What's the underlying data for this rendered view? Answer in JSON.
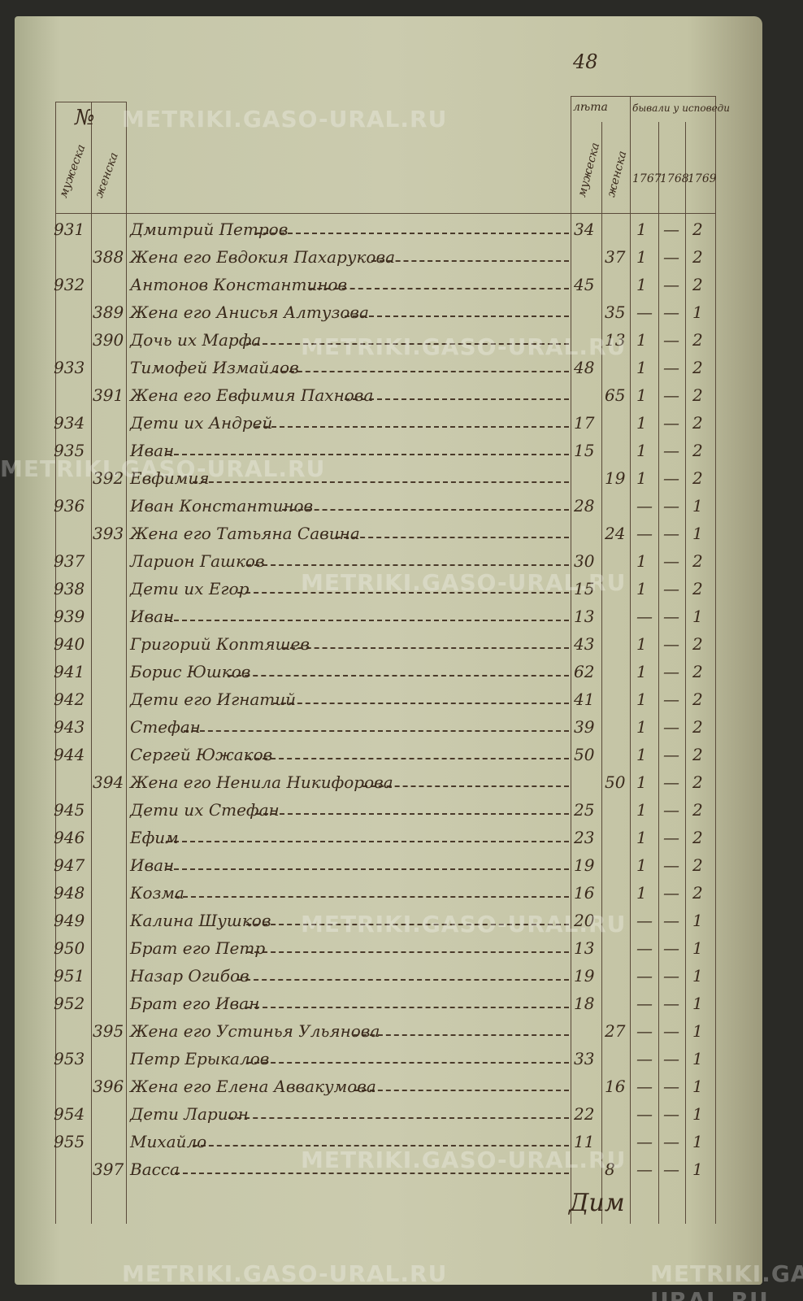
{
  "page_number": "48",
  "watermark": "METRIKI.GASO-URAL.RU",
  "header": {
    "number": "№",
    "male": "мужеска",
    "female": "женска",
    "age": "лѣта",
    "age_male": "мужеска",
    "age_female": "женска",
    "confession": "бывали у исповеди",
    "years": [
      "1767",
      "1768",
      "1769"
    ]
  },
  "rows": [
    [
      "931",
      null,
      "Дмитрий Петров",
      "34",
      null,
      "1",
      "—",
      "2"
    ],
    [
      null,
      "388",
      "Жена его Евдокия Пахарукова",
      null,
      "37",
      "1",
      "—",
      "2"
    ],
    [
      "932",
      null,
      "Антонов Константинов",
      "45",
      null,
      "1",
      "—",
      "2"
    ],
    [
      null,
      "389",
      "Жена его Анисья Алтузова",
      null,
      "35",
      "—",
      "—",
      "1"
    ],
    [
      null,
      "390",
      "Дочь их Марфа",
      null,
      "13",
      "1",
      "—",
      "2"
    ],
    [
      "933",
      null,
      "Тимофей Измайлов",
      "48",
      null,
      "1",
      "—",
      "2"
    ],
    [
      null,
      "391",
      "Жена его Евфимия Пахнова",
      null,
      "65",
      "1",
      "—",
      "2"
    ],
    [
      "934",
      null,
      "Дети их Андрей",
      "17",
      null,
      "1",
      "—",
      "2"
    ],
    [
      "935",
      null,
      "Иван",
      "15",
      null,
      "1",
      "—",
      "2"
    ],
    [
      null,
      "392",
      "Евфимия",
      null,
      "19",
      "1",
      "—",
      "2"
    ],
    [
      "936",
      null,
      "Иван Константинов",
      "28",
      null,
      "—",
      "—",
      "1"
    ],
    [
      null,
      "393",
      "Жена его Татьяна Савина",
      null,
      "24",
      "—",
      "—",
      "1"
    ],
    [
      "937",
      null,
      "Ларион Гашков",
      "30",
      null,
      "1",
      "—",
      "2"
    ],
    [
      "938",
      null,
      "Дети их Егор",
      "15",
      null,
      "1",
      "—",
      "2"
    ],
    [
      "939",
      null,
      "Иван",
      "13",
      null,
      "—",
      "—",
      "1"
    ],
    [
      "940",
      null,
      "Григорий Коптяшев",
      "43",
      null,
      "1",
      "—",
      "2"
    ],
    [
      "941",
      null,
      "Борис Юшков",
      "62",
      null,
      "1",
      "—",
      "2"
    ],
    [
      "942",
      null,
      "Дети его Игнатий",
      "41",
      null,
      "1",
      "—",
      "2"
    ],
    [
      "943",
      null,
      "Стефан",
      "39",
      null,
      "1",
      "—",
      "2"
    ],
    [
      "944",
      null,
      "Сергей Южаков",
      "50",
      null,
      "1",
      "—",
      "2"
    ],
    [
      null,
      "394",
      "Жена его Ненила Никифорова",
      null,
      "50",
      "1",
      "—",
      "2"
    ],
    [
      "945",
      null,
      "Дети их Стефан",
      "25",
      null,
      "1",
      "—",
      "2"
    ],
    [
      "946",
      null,
      "Ефим",
      "23",
      null,
      "1",
      "—",
      "2"
    ],
    [
      "947",
      null,
      "Иван",
      "19",
      null,
      "1",
      "—",
      "2"
    ],
    [
      "948",
      null,
      "Козма",
      "16",
      null,
      "1",
      "—",
      "2"
    ],
    [
      "949",
      null,
      "Калина Шушков",
      "20",
      null,
      "—",
      "—",
      "1"
    ],
    [
      "950",
      null,
      "Брат его Петр",
      "13",
      null,
      "—",
      "—",
      "1"
    ],
    [
      "951",
      null,
      "Назар Огибов",
      "19",
      null,
      "—",
      "—",
      "1"
    ],
    [
      "952",
      null,
      "Брат его Иван",
      "18",
      null,
      "—",
      "—",
      "1"
    ],
    [
      null,
      "395",
      "Жена его Устинья Ульянова",
      null,
      "27",
      "—",
      "—",
      "1"
    ],
    [
      "953",
      null,
      "Петр Ерыкалов",
      "33",
      null,
      "—",
      "—",
      "1"
    ],
    [
      null,
      "396",
      "Жена его Елена Аввакумова",
      null,
      "16",
      "—",
      "—",
      "1"
    ],
    [
      "954",
      null,
      "Дети Ларион",
      "22",
      null,
      "—",
      "—",
      "1"
    ],
    [
      "955",
      null,
      "Михайло",
      "11",
      null,
      "—",
      "—",
      "1"
    ],
    [
      null,
      "397",
      "Васса",
      null,
      "8",
      "—",
      "—",
      "1"
    ]
  ],
  "signature": "Дим"
}
